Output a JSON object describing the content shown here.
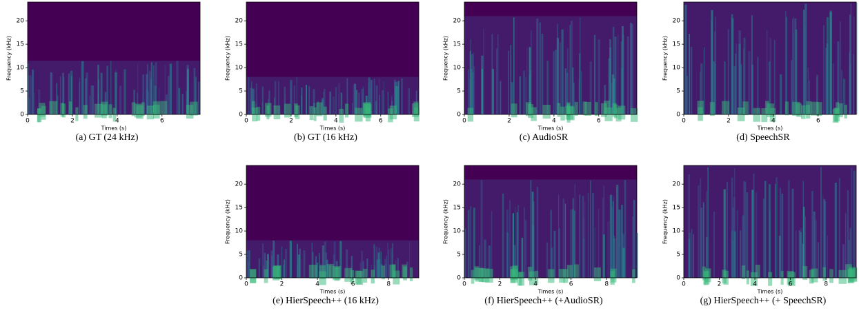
{
  "chart_data": [
    {
      "type": "spectrogram",
      "caption": "(a) GT (24 kHz)",
      "xlabel": "Times (s)",
      "ylabel": "Frequency (kHz)",
      "xlim": [
        0,
        7.7
      ],
      "ylim": [
        0,
        24
      ],
      "xticks": [
        0,
        2,
        4,
        6
      ],
      "yticks": [
        0,
        5,
        10,
        15,
        20
      ],
      "band_top": 11.5
    },
    {
      "type": "spectrogram",
      "caption": "(b) GT (16 kHz)",
      "xlabel": "Times (s)",
      "ylabel": "Frequency (kHz)",
      "xlim": [
        0,
        7.7
      ],
      "ylim": [
        0,
        24
      ],
      "xticks": [
        0,
        2,
        4,
        6
      ],
      "yticks": [
        0,
        5,
        10,
        15,
        20
      ],
      "band_top": 8
    },
    {
      "type": "spectrogram",
      "caption": "(c) AudioSR",
      "xlabel": "Times (s)",
      "ylabel": "Frequency (kHz)",
      "xlim": [
        0,
        7.7
      ],
      "ylim": [
        0,
        24
      ],
      "xticks": [
        0,
        2,
        4,
        6
      ],
      "yticks": [
        0,
        5,
        10,
        15,
        20
      ],
      "band_top": 21
    },
    {
      "type": "spectrogram",
      "caption": "(d) SpeechSR",
      "xlabel": "Times (s)",
      "ylabel": "Frequency (kHz)",
      "xlim": [
        0,
        7.7
      ],
      "ylim": [
        0,
        24
      ],
      "xticks": [
        0,
        2,
        4,
        6
      ],
      "yticks": [
        0,
        5,
        10,
        15,
        20
      ],
      "band_top": 24
    },
    {
      "type": "spectrogram",
      "caption": "(e) HierSpeech++ (16 kHz)",
      "xlabel": "Times (s)",
      "ylabel": "Frequency (kHz)",
      "xlim": [
        0,
        9.7
      ],
      "ylim": [
        0,
        24
      ],
      "xticks": [
        0,
        2,
        4,
        6,
        8
      ],
      "yticks": [
        0,
        5,
        10,
        15,
        20
      ],
      "band_top": 8
    },
    {
      "type": "spectrogram",
      "caption": "(f) HierSpeech++ (+AudioSR)",
      "xlabel": "Times (s)",
      "ylabel": "Frequency (kHz)",
      "xlim": [
        0,
        9.7
      ],
      "ylim": [
        0,
        24
      ],
      "xticks": [
        0,
        2,
        4,
        6,
        8
      ],
      "yticks": [
        0,
        5,
        10,
        15,
        20
      ],
      "band_top": 21
    },
    {
      "type": "spectrogram",
      "caption": "(g) HierSpeech++ (+ SpeechSR)",
      "xlabel": "Times (s)",
      "ylabel": "Frequency (kHz)",
      "xlim": [
        0,
        9.7
      ],
      "ylim": [
        0,
        24
      ],
      "xticks": [
        0,
        2,
        4,
        6,
        8
      ],
      "yticks": [
        0,
        5,
        10,
        15,
        20
      ],
      "band_top": 24
    }
  ]
}
